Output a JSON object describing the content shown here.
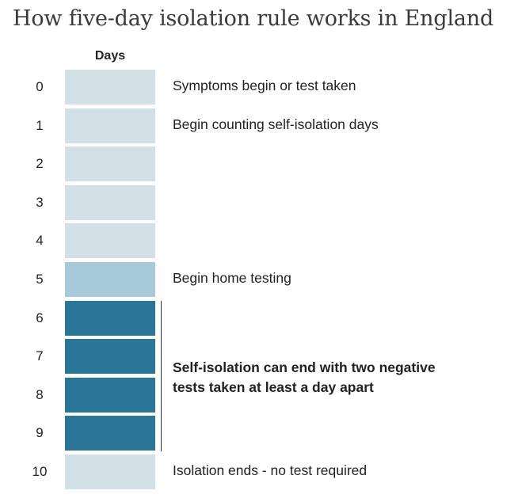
{
  "title": "How five-day isolation rule works in England",
  "days_header": "Days",
  "days": [
    {
      "day": "0",
      "stage": "light",
      "note": "Symptoms begin or test taken"
    },
    {
      "day": "1",
      "stage": "light",
      "note": "Begin counting self-isolation days"
    },
    {
      "day": "2",
      "stage": "light",
      "note": ""
    },
    {
      "day": "3",
      "stage": "light",
      "note": ""
    },
    {
      "day": "4",
      "stage": "light",
      "note": ""
    },
    {
      "day": "5",
      "stage": "medium",
      "note": "Begin home testing"
    },
    {
      "day": "6",
      "stage": "dark",
      "note": ""
    },
    {
      "day": "7",
      "stage": "dark",
      "note": ""
    },
    {
      "day": "8",
      "stage": "dark",
      "note": ""
    },
    {
      "day": "9",
      "stage": "dark",
      "note": ""
    },
    {
      "day": "10",
      "stage": "light",
      "note": "Isolation ends - no test required"
    }
  ],
  "bracket_note": {
    "line1": "Self-isolation can end with two negative",
    "line2": "tests taken at least a day apart"
  },
  "colors": {
    "light": "#d2e1e7",
    "medium": "#a7cadb",
    "dark": "#2a7699"
  }
}
